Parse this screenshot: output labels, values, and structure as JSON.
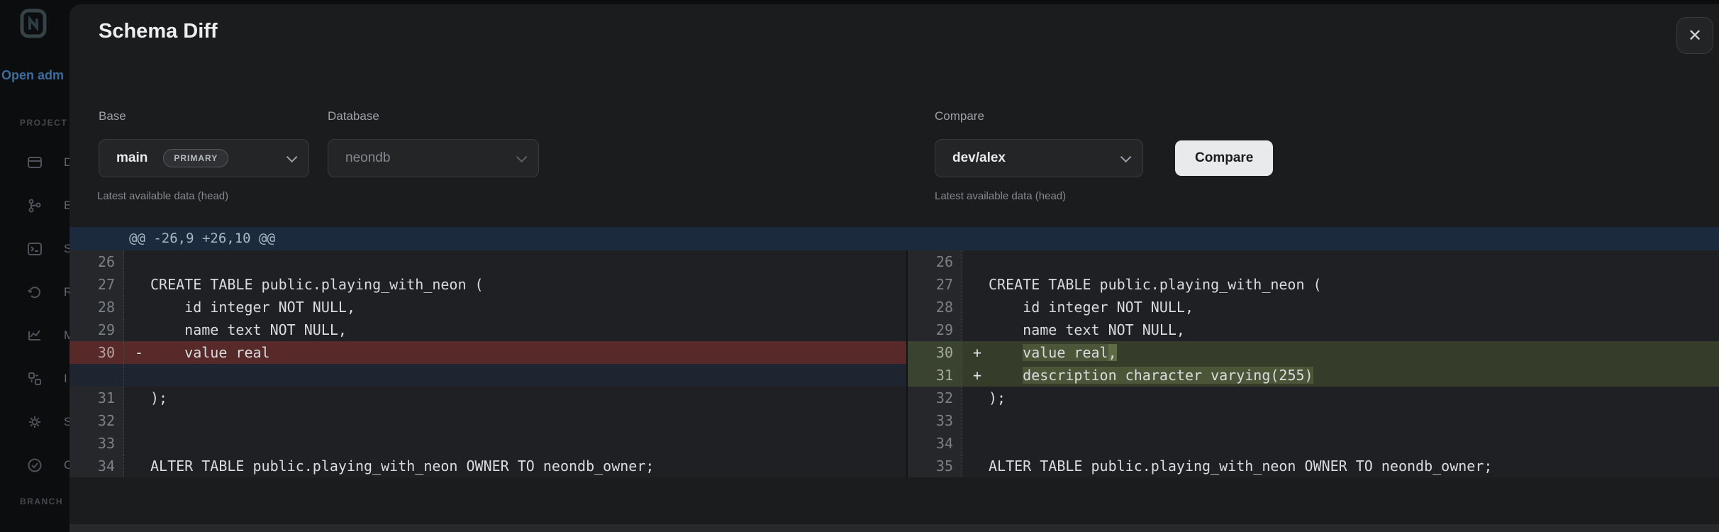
{
  "sidebar": {
    "open_link": "Open adm",
    "project_header": "PROJECT",
    "branch_header": "BRANCH",
    "items": [
      {
        "icon": "dashboard-icon",
        "label": "D"
      },
      {
        "icon": "branches-icon",
        "label": "B"
      },
      {
        "icon": "sql-editor-icon",
        "label": "S"
      },
      {
        "icon": "restore-icon",
        "label": "R"
      },
      {
        "icon": "monitoring-icon",
        "label": "M"
      },
      {
        "icon": "integrations-icon",
        "label": "I"
      },
      {
        "icon": "settings-icon",
        "label": "S"
      },
      {
        "icon": "checklist-icon",
        "label": "C"
      }
    ]
  },
  "modal": {
    "title": "Schema Diff",
    "close_icon": "✕"
  },
  "form": {
    "base": {
      "label": "Base",
      "value": "main",
      "badge": "PRIMARY",
      "helper": "Latest available data (head)"
    },
    "database": {
      "label": "Database",
      "value": "neondb"
    },
    "compare": {
      "label": "Compare",
      "value": "dev/alex",
      "helper": "Latest available data (head)",
      "button_label": "Compare"
    }
  },
  "diff": {
    "hunk_header": "@@ -26,9 +26,10 @@",
    "left_rows": [
      {
        "num": "26",
        "marker": "",
        "text": "",
        "type": "context"
      },
      {
        "num": "27",
        "marker": "",
        "text": "CREATE TABLE public.playing_with_neon (",
        "type": "context"
      },
      {
        "num": "28",
        "marker": "",
        "text": "    id integer NOT NULL,",
        "type": "context"
      },
      {
        "num": "29",
        "marker": "",
        "text": "    name text NOT NULL,",
        "type": "context"
      },
      {
        "num": "30",
        "marker": "-",
        "text": "    value real",
        "type": "removed"
      },
      {
        "num": "",
        "marker": "",
        "text": "",
        "type": "filler"
      },
      {
        "num": "31",
        "marker": "",
        "text": ");",
        "type": "context"
      },
      {
        "num": "32",
        "marker": "",
        "text": "",
        "type": "context"
      },
      {
        "num": "33",
        "marker": "",
        "text": "",
        "type": "context"
      },
      {
        "num": "34",
        "marker": "",
        "text": "ALTER TABLE public.playing_with_neon OWNER TO neondb_owner;",
        "type": "context"
      }
    ],
    "right_rows": [
      {
        "num": "26",
        "marker": "",
        "text": "",
        "type": "context"
      },
      {
        "num": "27",
        "marker": "",
        "text": "CREATE TABLE public.playing_with_neon (",
        "type": "context"
      },
      {
        "num": "28",
        "marker": "",
        "text": "    id integer NOT NULL,",
        "type": "context"
      },
      {
        "num": "29",
        "marker": "",
        "text": "    name text NOT NULL,",
        "type": "context"
      },
      {
        "num": "30",
        "marker": "+",
        "type": "added",
        "segments": [
          {
            "text": "    "
          },
          {
            "text": "value real",
            "highlight": "word"
          },
          {
            "text": ",",
            "highlight": "strong"
          }
        ]
      },
      {
        "num": "31",
        "marker": "+",
        "type": "added",
        "segments": [
          {
            "text": "    "
          },
          {
            "text": "description character varying(255)",
            "highlight": "word"
          }
        ]
      },
      {
        "num": "32",
        "marker": "",
        "text": ");",
        "type": "context"
      },
      {
        "num": "33",
        "marker": "",
        "text": "",
        "type": "context"
      },
      {
        "num": "34",
        "marker": "",
        "text": "",
        "type": "context"
      },
      {
        "num": "35",
        "marker": "",
        "text": "ALTER TABLE public.playing_with_neon OWNER TO neondb_owner;",
        "type": "context"
      }
    ]
  },
  "colors": {
    "modal_bg": "#1b1c1e",
    "sidebar_bg": "#0c0d0e",
    "hunk_bg": "#1c2a3d",
    "removed_bg": "#572a29",
    "added_bg": "#353c2a",
    "added_word_highlight": "#4a5637",
    "added_strong_highlight": "#5d6b47",
    "filler_bg": "#1e2531",
    "link_blue": "#3c6c9e",
    "compare_button_bg": "#e9eaeb"
  }
}
